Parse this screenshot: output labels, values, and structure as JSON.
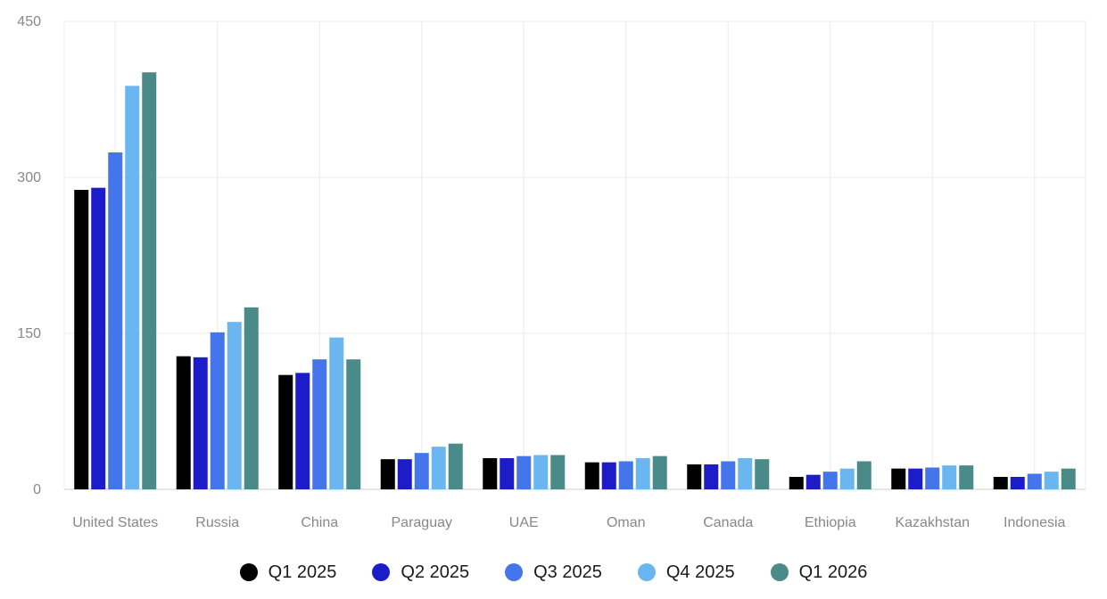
{
  "chart_data": {
    "type": "bar",
    "categories": [
      "United States",
      "Russia",
      "China",
      "Paraguay",
      "UAE",
      "Oman",
      "Canada",
      "Ethiopia",
      "Kazakhstan",
      "Indonesia"
    ],
    "series": [
      {
        "name": "Q1 2025",
        "color": "#000000",
        "values": [
          288,
          128,
          110,
          29,
          30,
          26,
          24,
          12,
          20,
          12
        ]
      },
      {
        "name": "Q2 2025",
        "color": "#1c1cc8",
        "values": [
          290,
          127,
          112,
          29,
          30,
          26,
          24,
          14,
          20,
          12
        ]
      },
      {
        "name": "Q3 2025",
        "color": "#4475ea",
        "values": [
          324,
          151,
          125,
          35,
          32,
          27,
          27,
          17,
          21,
          15
        ]
      },
      {
        "name": "Q4 2025",
        "color": "#6ab6f0",
        "values": [
          388,
          161,
          146,
          41,
          33,
          30,
          30,
          20,
          23,
          17
        ]
      },
      {
        "name": "Q1 2026",
        "color": "#4a8a88",
        "values": [
          401,
          175,
          125,
          44,
          33,
          32,
          29,
          27,
          23,
          20
        ]
      }
    ],
    "yticks": [
      0,
      150,
      300,
      450
    ],
    "ylim": [
      0,
      450
    ],
    "grid": true,
    "legend_position": "bottom"
  }
}
